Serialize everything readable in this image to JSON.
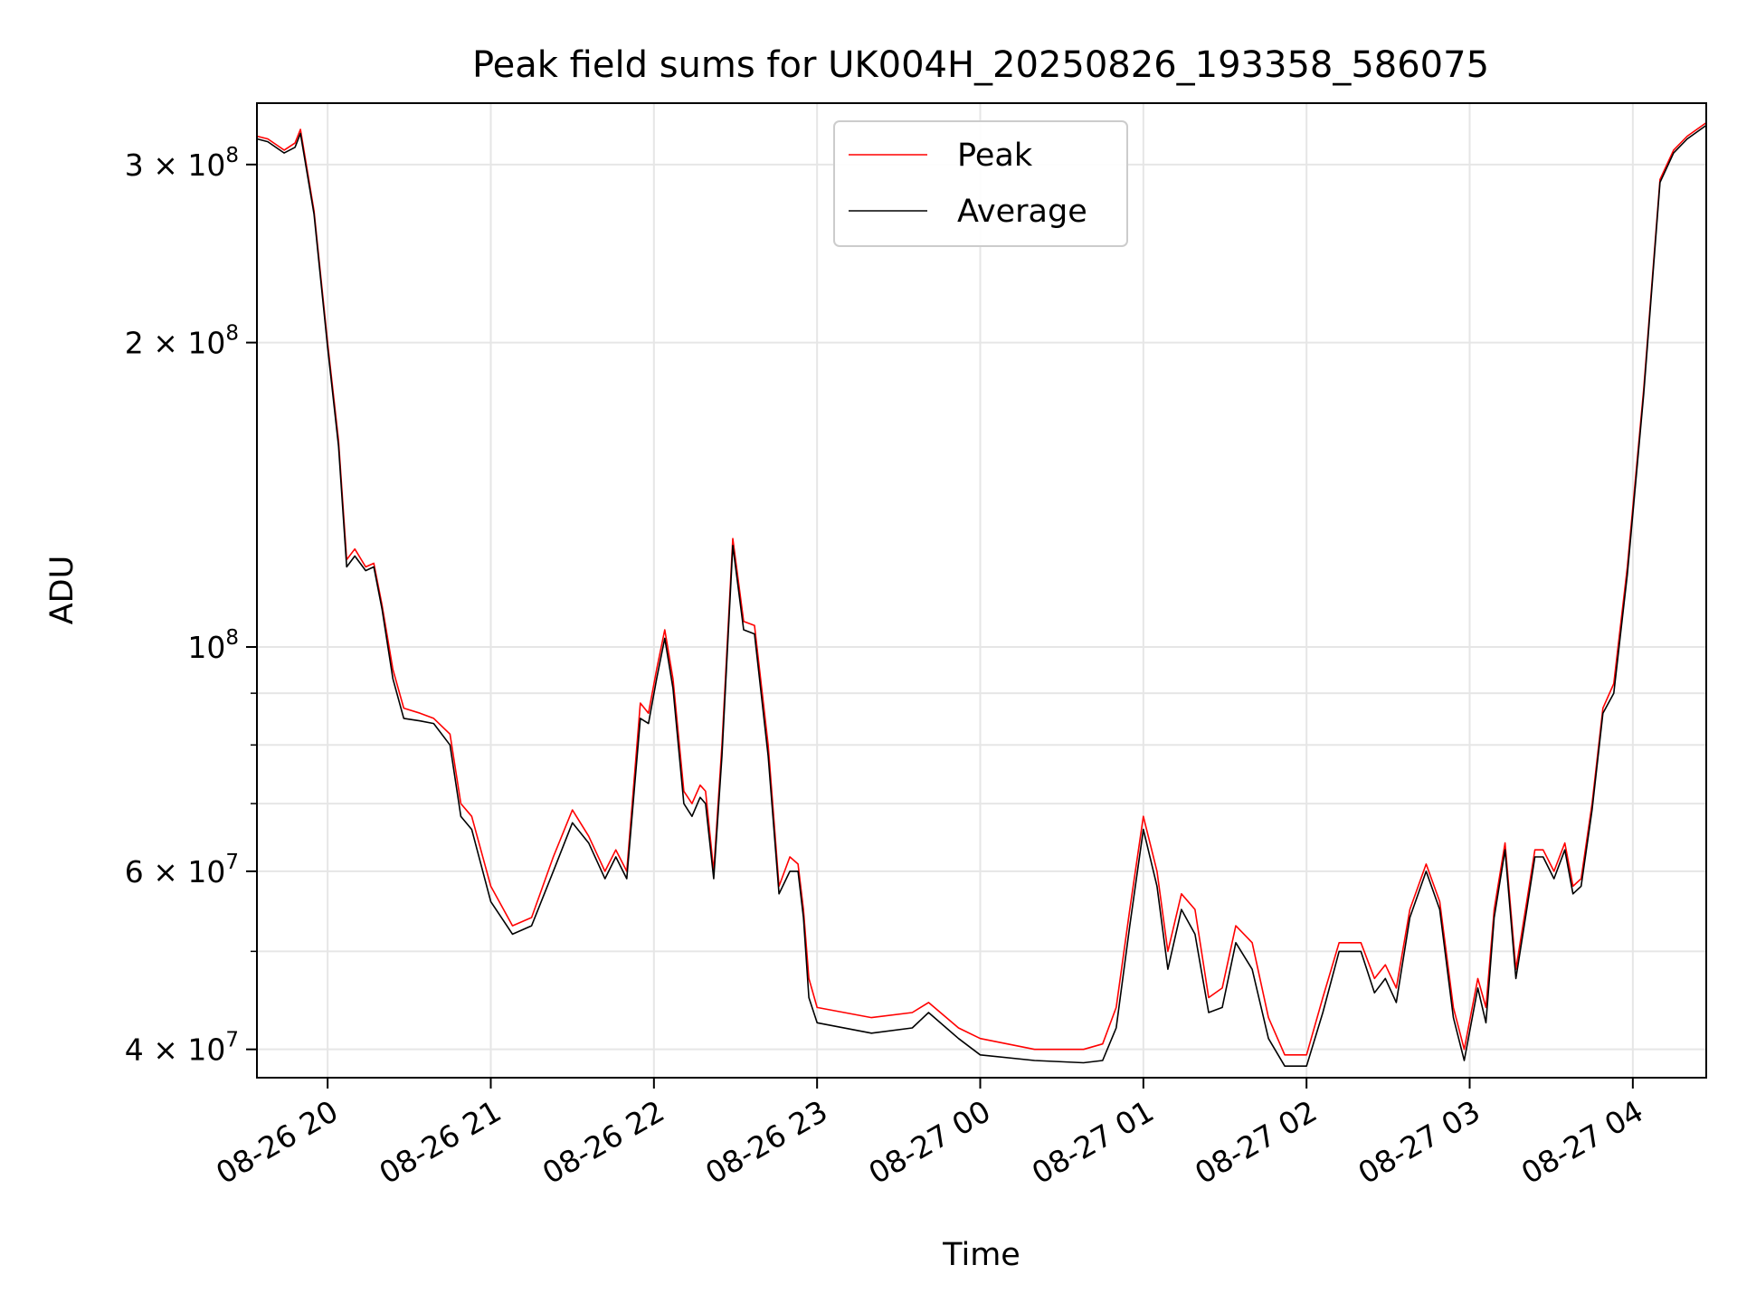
{
  "chart_data": {
    "type": "line",
    "title": "Peak field sums for UK004H_20250826_193358_586075",
    "xlabel": "Time",
    "ylabel": "ADU",
    "yscale": "log",
    "xlim": [
      "2025-08-26 19:34",
      "2025-08-27 04:27"
    ],
    "ylim": [
      37500000,
      345000000
    ],
    "grid": true,
    "legend_position": "upper center",
    "x_ticks": [
      {
        "t": "2025-08-26 20:00",
        "label": "08-26 20"
      },
      {
        "t": "2025-08-26 21:00",
        "label": "08-26 21"
      },
      {
        "t": "2025-08-26 22:00",
        "label": "08-26 22"
      },
      {
        "t": "2025-08-26 23:00",
        "label": "08-26 23"
      },
      {
        "t": "2025-08-27 00:00",
        "label": "08-27 00"
      },
      {
        "t": "2025-08-27 01:00",
        "label": "08-27 01"
      },
      {
        "t": "2025-08-27 02:00",
        "label": "08-27 02"
      },
      {
        "t": "2025-08-27 03:00",
        "label": "08-27 03"
      },
      {
        "t": "2025-08-27 04:00",
        "label": "08-27 04"
      }
    ],
    "y_ticks_major": [
      {
        "value": 40000000,
        "base": "4 × 10",
        "exp": "7"
      },
      {
        "value": 60000000,
        "base": "6 × 10",
        "exp": "7"
      },
      {
        "value": 100000000,
        "base": "10",
        "exp": "8"
      },
      {
        "value": 200000000,
        "base": "2 × 10",
        "exp": "8"
      },
      {
        "value": 300000000,
        "base": "3 × 10",
        "exp": "8"
      }
    ],
    "y_ticks_minor": [
      50000000,
      70000000,
      80000000,
      90000000
    ],
    "series": [
      {
        "name": "Peak",
        "color": "#ff0000",
        "x": [
          "2025-08-26 19:34",
          "2025-08-26 19:38",
          "2025-08-26 19:44",
          "2025-08-26 19:48",
          "2025-08-26 19:50",
          "2025-08-26 19:55",
          "2025-08-26 20:00",
          "2025-08-26 20:04",
          "2025-08-26 20:07",
          "2025-08-26 20:10",
          "2025-08-26 20:14",
          "2025-08-26 20:17",
          "2025-08-26 20:20",
          "2025-08-26 20:24",
          "2025-08-26 20:28",
          "2025-08-26 20:34",
          "2025-08-26 20:39",
          "2025-08-26 20:45",
          "2025-08-26 20:49",
          "2025-08-26 20:53",
          "2025-08-26 21:00",
          "2025-08-26 21:08",
          "2025-08-26 21:15",
          "2025-08-26 21:23",
          "2025-08-26 21:30",
          "2025-08-26 21:36",
          "2025-08-26 21:42",
          "2025-08-26 21:46",
          "2025-08-26 21:50",
          "2025-08-26 21:55",
          "2025-08-26 21:58",
          "2025-08-26 22:01",
          "2025-08-26 22:04",
          "2025-08-26 22:07",
          "2025-08-26 22:11",
          "2025-08-26 22:14",
          "2025-08-26 22:17",
          "2025-08-26 22:19",
          "2025-08-26 22:22",
          "2025-08-26 22:25",
          "2025-08-26 22:29",
          "2025-08-26 22:33",
          "2025-08-26 22:37",
          "2025-08-26 22:42",
          "2025-08-26 22:46",
          "2025-08-26 22:50",
          "2025-08-26 22:53",
          "2025-08-26 22:55",
          "2025-08-26 22:57",
          "2025-08-26 23:00",
          "2025-08-26 23:20",
          "2025-08-26 23:35",
          "2025-08-26 23:41",
          "2025-08-26 23:52",
          "2025-08-27 00:00",
          "2025-08-27 00:20",
          "2025-08-27 00:38",
          "2025-08-27 00:45",
          "2025-08-27 00:50",
          "2025-08-27 00:55",
          "2025-08-27 01:00",
          "2025-08-27 01:05",
          "2025-08-27 01:09",
          "2025-08-27 01:14",
          "2025-08-27 01:19",
          "2025-08-27 01:24",
          "2025-08-27 01:29",
          "2025-08-27 01:34",
          "2025-08-27 01:40",
          "2025-08-27 01:46",
          "2025-08-27 01:52",
          "2025-08-27 02:00",
          "2025-08-27 02:06",
          "2025-08-27 02:12",
          "2025-08-27 02:20",
          "2025-08-27 02:25",
          "2025-08-27 02:29",
          "2025-08-27 02:33",
          "2025-08-27 02:38",
          "2025-08-27 02:44",
          "2025-08-27 02:49",
          "2025-08-27 02:54",
          "2025-08-27 02:58",
          "2025-08-27 03:03",
          "2025-08-27 03:06",
          "2025-08-27 03:09",
          "2025-08-27 03:13",
          "2025-08-27 03:17",
          "2025-08-27 03:21",
          "2025-08-27 03:24",
          "2025-08-27 03:27",
          "2025-08-27 03:31",
          "2025-08-27 03:35",
          "2025-08-27 03:38",
          "2025-08-27 03:41",
          "2025-08-27 03:45",
          "2025-08-27 03:49",
          "2025-08-27 03:53",
          "2025-08-27 03:58",
          "2025-08-27 04:04",
          "2025-08-27 04:10",
          "2025-08-27 04:15",
          "2025-08-27 04:20",
          "2025-08-27 04:27"
        ],
        "values": [
          320000000,
          318000000,
          310000000,
          315000000,
          325000000,
          270000000,
          200000000,
          160000000,
          122000000,
          125000000,
          120000000,
          121000000,
          110000000,
          95000000,
          87000000,
          86000000,
          85000000,
          82000000,
          70000000,
          68000000,
          58000000,
          53000000,
          54000000,
          62000000,
          69000000,
          65000000,
          60000000,
          63000000,
          60000000,
          88000000,
          86000000,
          95000000,
          104000000,
          93000000,
          72000000,
          70000000,
          73000000,
          72000000,
          60000000,
          80000000,
          128000000,
          106000000,
          105000000,
          80000000,
          58000000,
          62000000,
          61000000,
          55000000,
          47000000,
          44000000,
          43000000,
          43500000,
          44500000,
          42000000,
          41000000,
          40000000,
          40000000,
          40500000,
          44000000,
          55000000,
          68000000,
          60000000,
          50000000,
          57000000,
          55000000,
          45000000,
          46000000,
          53000000,
          51000000,
          43000000,
          39500000,
          39500000,
          45000000,
          51000000,
          51000000,
          47000000,
          48500000,
          46000000,
          55000000,
          61000000,
          56000000,
          44000000,
          40000000,
          47000000,
          44000000,
          55000000,
          64000000,
          48000000,
          56000000,
          63000000,
          63000000,
          60000000,
          64000000,
          58000000,
          59000000,
          70000000,
          87000000,
          92000000,
          120000000,
          180000000,
          290000000,
          310000000,
          320000000,
          330000000
        ]
      },
      {
        "name": "Average",
        "color": "#000000",
        "x": [
          "2025-08-26 19:34",
          "2025-08-26 19:38",
          "2025-08-26 19:44",
          "2025-08-26 19:48",
          "2025-08-26 19:50",
          "2025-08-26 19:55",
          "2025-08-26 20:00",
          "2025-08-26 20:04",
          "2025-08-26 20:07",
          "2025-08-26 20:10",
          "2025-08-26 20:14",
          "2025-08-26 20:17",
          "2025-08-26 20:20",
          "2025-08-26 20:24",
          "2025-08-26 20:28",
          "2025-08-26 20:34",
          "2025-08-26 20:39",
          "2025-08-26 20:45",
          "2025-08-26 20:49",
          "2025-08-26 20:53",
          "2025-08-26 21:00",
          "2025-08-26 21:08",
          "2025-08-26 21:15",
          "2025-08-26 21:23",
          "2025-08-26 21:30",
          "2025-08-26 21:36",
          "2025-08-26 21:42",
          "2025-08-26 21:46",
          "2025-08-26 21:50",
          "2025-08-26 21:55",
          "2025-08-26 21:58",
          "2025-08-26 22:01",
          "2025-08-26 22:04",
          "2025-08-26 22:07",
          "2025-08-26 22:11",
          "2025-08-26 22:14",
          "2025-08-26 22:17",
          "2025-08-26 22:19",
          "2025-08-26 22:22",
          "2025-08-26 22:25",
          "2025-08-26 22:29",
          "2025-08-26 22:33",
          "2025-08-26 22:37",
          "2025-08-26 22:42",
          "2025-08-26 22:46",
          "2025-08-26 22:50",
          "2025-08-26 22:53",
          "2025-08-26 22:55",
          "2025-08-26 22:57",
          "2025-08-26 23:00",
          "2025-08-26 23:20",
          "2025-08-26 23:35",
          "2025-08-26 23:41",
          "2025-08-26 23:52",
          "2025-08-27 00:00",
          "2025-08-27 00:20",
          "2025-08-27 00:38",
          "2025-08-27 00:45",
          "2025-08-27 00:50",
          "2025-08-27 00:55",
          "2025-08-27 01:00",
          "2025-08-27 01:05",
          "2025-08-27 01:09",
          "2025-08-27 01:14",
          "2025-08-27 01:19",
          "2025-08-27 01:24",
          "2025-08-27 01:29",
          "2025-08-27 01:34",
          "2025-08-27 01:40",
          "2025-08-27 01:46",
          "2025-08-27 01:52",
          "2025-08-27 02:00",
          "2025-08-27 02:06",
          "2025-08-27 02:12",
          "2025-08-27 02:20",
          "2025-08-27 02:25",
          "2025-08-27 02:29",
          "2025-08-27 02:33",
          "2025-08-27 02:38",
          "2025-08-27 02:44",
          "2025-08-27 02:49",
          "2025-08-27 02:54",
          "2025-08-27 02:58",
          "2025-08-27 03:03",
          "2025-08-27 03:06",
          "2025-08-27 03:09",
          "2025-08-27 03:13",
          "2025-08-27 03:17",
          "2025-08-27 03:21",
          "2025-08-27 03:24",
          "2025-08-27 03:27",
          "2025-08-27 03:31",
          "2025-08-27 03:35",
          "2025-08-27 03:38",
          "2025-08-27 03:41",
          "2025-08-27 03:45",
          "2025-08-27 03:49",
          "2025-08-27 03:53",
          "2025-08-27 03:58",
          "2025-08-27 04:04",
          "2025-08-27 04:10",
          "2025-08-27 04:15",
          "2025-08-27 04:20",
          "2025-08-27 04:27"
        ],
        "values": [
          318000000,
          316000000,
          308000000,
          312000000,
          322000000,
          268000000,
          198000000,
          158000000,
          120000000,
          123000000,
          119000000,
          120000000,
          109000000,
          93000000,
          85000000,
          84500000,
          84000000,
          80000000,
          68000000,
          66000000,
          56000000,
          52000000,
          53000000,
          60000000,
          67000000,
          64000000,
          59000000,
          62000000,
          59000000,
          85000000,
          84000000,
          93000000,
          102000000,
          91000000,
          70000000,
          68000000,
          71000000,
          70000000,
          59000000,
          78000000,
          126000000,
          104000000,
          103000000,
          78000000,
          57000000,
          60000000,
          60000000,
          54000000,
          45000000,
          42500000,
          41500000,
          42000000,
          43500000,
          41000000,
          39500000,
          39000000,
          38800000,
          39000000,
          42000000,
          53000000,
          66000000,
          58000000,
          48000000,
          55000000,
          52000000,
          43500000,
          44000000,
          51000000,
          48000000,
          41000000,
          38500000,
          38500000,
          43500000,
          50000000,
          50000000,
          45500000,
          47000000,
          44500000,
          54000000,
          60000000,
          55000000,
          43000000,
          39000000,
          46000000,
          42500000,
          54000000,
          63000000,
          47000000,
          55000000,
          62000000,
          62000000,
          59000000,
          63000000,
          57000000,
          58000000,
          69000000,
          86000000,
          90000000,
          118000000,
          178000000,
          288000000,
          308000000,
          318000000,
          328000000
        ]
      }
    ]
  }
}
